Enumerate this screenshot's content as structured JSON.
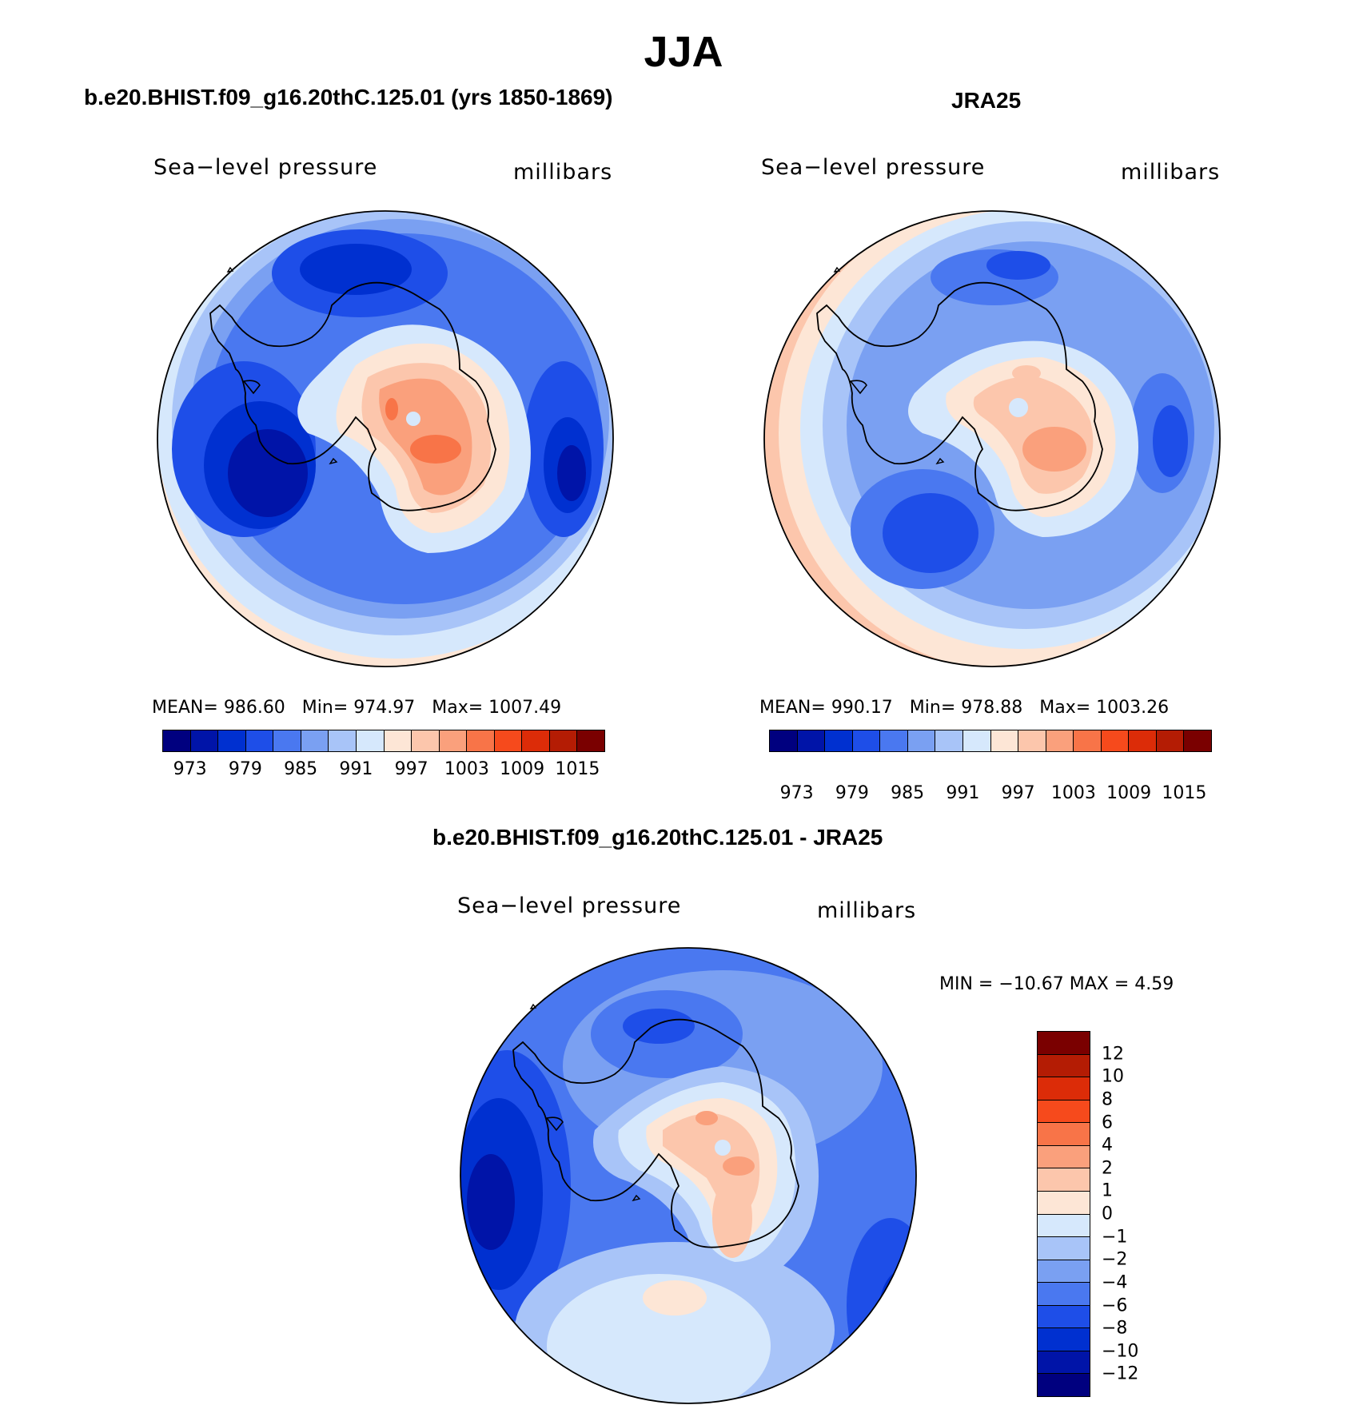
{
  "figure_title": "JJA",
  "panels": [
    {
      "title": "b.e20.BHIST.f09_g16.20thC.125.01 (yrs 1850-1869)",
      "left_label": "Sea−level pressure",
      "right_label": "millibars",
      "stats": {
        "mean_label": "MEAN=",
        "mean": "986.60",
        "min_label": "Min=",
        "min": "974.97",
        "max_label": "Max=",
        "max": "1007.49"
      }
    },
    {
      "title": "JRA25",
      "left_label": "Sea−level pressure",
      "right_label": "millibars",
      "stats": {
        "mean_label": "MEAN=",
        "mean": "990.17",
        "min_label": "Min=",
        "min": "978.88",
        "max_label": "Max=",
        "max": "1003.26"
      }
    },
    {
      "title": "b.e20.BHIST.f09_g16.20thC.125.01 - JRA25",
      "left_label": "Sea−level pressure",
      "right_label": "millibars",
      "minmax": "MIN = −10.67 MAX =    4.59"
    }
  ],
  "colors": {
    "palette_16": [
      "#00007f",
      "#0014a8",
      "#0030d0",
      "#1e4ee8",
      "#4a78f0",
      "#7aa0f2",
      "#a8c4f8",
      "#d6e8fc",
      "#fde6d6",
      "#fcc6ac",
      "#faa07c",
      "#f87448",
      "#f64a1c",
      "#dc2c08",
      "#b41c04",
      "#7a0000"
    ],
    "palette_diff_12_top_to_bottom": [
      "#7a0000",
      "#b41c04",
      "#dc2c08",
      "#f64a1c",
      "#f87448",
      "#faa07c",
      "#fcc6ac",
      "#fde6d6",
      "#d6e8fc",
      "#a8c4f8",
      "#7aa0f2",
      "#4a78f0",
      "#1e4ee8",
      "#0030d0",
      "#0014a8",
      "#00007f"
    ],
    "land_outline": "#000000"
  },
  "chart_data": [
    {
      "type": "filled-contour-map",
      "projection": "south polar stereographic",
      "title": "b.e20.BHIST.f09_g16.20thC.125.01 (yrs 1850-1869)",
      "variable": "Sea-level pressure",
      "units": "millibars",
      "levels": [
        973,
        976,
        979,
        982,
        985,
        988,
        991,
        994,
        997,
        1000,
        1003,
        1006,
        1009,
        1012,
        1015
      ],
      "colorbar_tick_labels": [
        "973",
        "979",
        "985",
        "991",
        "997",
        "1003",
        "1009",
        "1015"
      ],
      "mean": 986.6,
      "min": 974.97,
      "max": 1007.49
    },
    {
      "type": "filled-contour-map",
      "projection": "south polar stereographic",
      "title": "JRA25",
      "variable": "Sea-level pressure",
      "units": "millibars",
      "levels": [
        973,
        976,
        979,
        982,
        985,
        988,
        991,
        994,
        997,
        1000,
        1003,
        1006,
        1009,
        1012,
        1015
      ],
      "colorbar_tick_labels": [
        "973",
        "979",
        "985",
        "991",
        "997",
        "1003",
        "1009",
        "1015"
      ],
      "mean": 990.17,
      "min": 978.88,
      "max": 1003.26
    },
    {
      "type": "filled-contour-map",
      "projection": "south polar stereographic",
      "title": "b.e20.BHIST.f09_g16.20thC.125.01 - JRA25",
      "variable": "Sea-level pressure",
      "units": "millibars",
      "levels": [
        -12,
        -10,
        -8,
        -6,
        -4,
        -2,
        -1,
        0,
        1,
        2,
        4,
        6,
        8,
        10,
        12
      ],
      "colorbar_tick_labels_top_to_bottom": [
        "12",
        "10",
        "8",
        "6",
        "4",
        "2",
        "1",
        "0",
        "−1",
        "−2",
        "−4",
        "−6",
        "−8",
        "−10",
        "−12"
      ],
      "min": -10.67,
      "max": 4.59
    }
  ]
}
